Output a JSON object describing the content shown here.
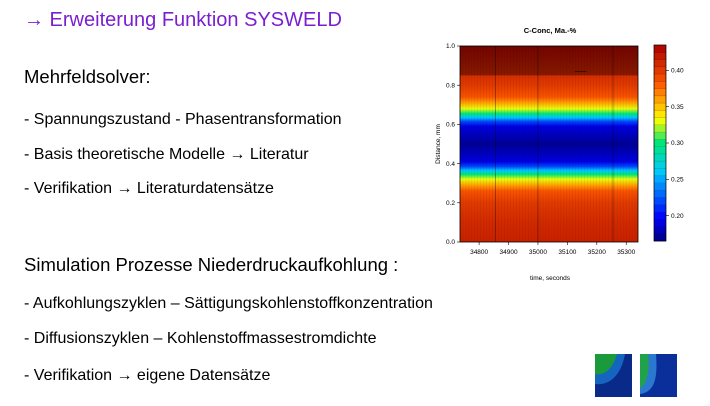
{
  "slide": {
    "title": "→ Erweiterung Funktion SYSWELD",
    "section1": "Mehrfeldsolver:",
    "bullets1": [
      "- Spannungszustand - Phasentransformation",
      "- Basis theoretische Modelle → Literatur",
      "- Verifikation → Literaturdatensätze"
    ],
    "section2": "Simulation Prozesse Niederdruckaufkohlung :",
    "bullets2": [
      "- Aufkohlungszyklen – Sättigungskohlenstoffkonzentration",
      "- Diffusionszyklen – Kohlenstoffmassestromdichte",
      "- Verifikation → eigene Datensätze"
    ]
  },
  "chart_data": {
    "type": "heatmap",
    "title": "C-Conc, Ma.-%",
    "xlabel": "time, seconds",
    "ylabel": "Distance, mm",
    "x_ticks": [
      "34800",
      "34900",
      "35000",
      "35100",
      "35200",
      "35300"
    ],
    "x_tick_values": [
      34800,
      34900,
      35000,
      35100,
      35200,
      35300
    ],
    "y_ticks": [
      "0.0",
      "0.2",
      "0.4",
      "0.6",
      "0.8",
      "1.0"
    ],
    "y_tick_values": [
      0.0,
      0.2,
      0.4,
      0.6,
      0.8,
      1.0
    ],
    "xlim": [
      34735,
      35340
    ],
    "ylim": [
      0.0,
      1.0
    ],
    "colorbar_ticks": [
      "0.20",
      "0.25",
      "0.30",
      "0.35",
      "0.40"
    ],
    "colorbar_tick_values": [
      0.2,
      0.25,
      0.3,
      0.35,
      0.4
    ],
    "colorbar_range": [
      0.165,
      0.435
    ],
    "profile": [
      {
        "distance": 0.0,
        "conc": 0.415
      },
      {
        "distance": 0.1,
        "conc": 0.41
      },
      {
        "distance": 0.2,
        "conc": 0.4
      },
      {
        "distance": 0.26,
        "conc": 0.385
      },
      {
        "distance": 0.29,
        "conc": 0.36
      },
      {
        "distance": 0.32,
        "conc": 0.33
      },
      {
        "distance": 0.345,
        "conc": 0.3
      },
      {
        "distance": 0.365,
        "conc": 0.26
      },
      {
        "distance": 0.385,
        "conc": 0.22
      },
      {
        "distance": 0.41,
        "conc": 0.19
      },
      {
        "distance": 0.5,
        "conc": 0.17
      },
      {
        "distance": 0.59,
        "conc": 0.19
      },
      {
        "distance": 0.615,
        "conc": 0.22
      },
      {
        "distance": 0.635,
        "conc": 0.26
      },
      {
        "distance": 0.655,
        "conc": 0.3
      },
      {
        "distance": 0.68,
        "conc": 0.33
      },
      {
        "distance": 0.71,
        "conc": 0.36
      },
      {
        "distance": 0.74,
        "conc": 0.385
      },
      {
        "distance": 0.8,
        "conc": 0.4
      },
      {
        "distance": 0.87,
        "conc": 0.41
      },
      {
        "distance": 1.0,
        "conc": 0.43
      }
    ]
  },
  "logos": {
    "left": {
      "colors": [
        "#1a9a3a",
        "#1565c0",
        "#0a2a8a"
      ]
    },
    "right": {
      "colors": [
        "#1fa24a",
        "#2a78d0",
        "#0a2f9a"
      ]
    }
  }
}
